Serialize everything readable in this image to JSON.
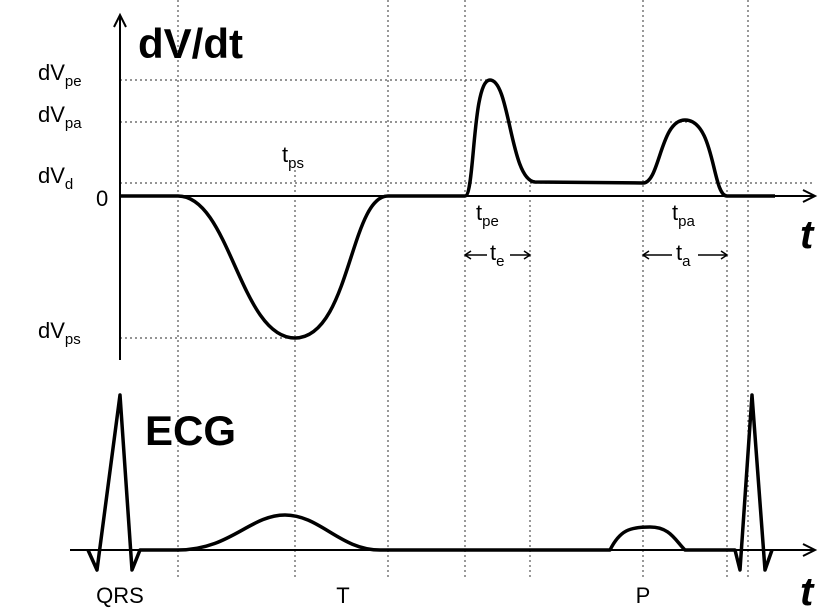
{
  "dvdt": {
    "title": "dV/dt",
    "x_axis_label": "t",
    "y_labels": [
      {
        "main": "dV",
        "sub": "pe"
      },
      {
        "main": "dV",
        "sub": "pa"
      },
      {
        "main": "dV",
        "sub": "d"
      },
      {
        "main": "0"
      },
      {
        "main": "dV",
        "sub": "ps"
      }
    ],
    "annotations": [
      {
        "main": "t",
        "sub": "ps"
      },
      {
        "main": "t",
        "sub": "pe"
      },
      {
        "main": "t",
        "sub": "e"
      },
      {
        "main": "t",
        "sub": "pa"
      },
      {
        "main": "t",
        "sub": "a"
      }
    ]
  },
  "ecg": {
    "title": "ECG",
    "x_axis_label": "t",
    "waves": [
      "QRS",
      "T",
      "P"
    ]
  }
}
